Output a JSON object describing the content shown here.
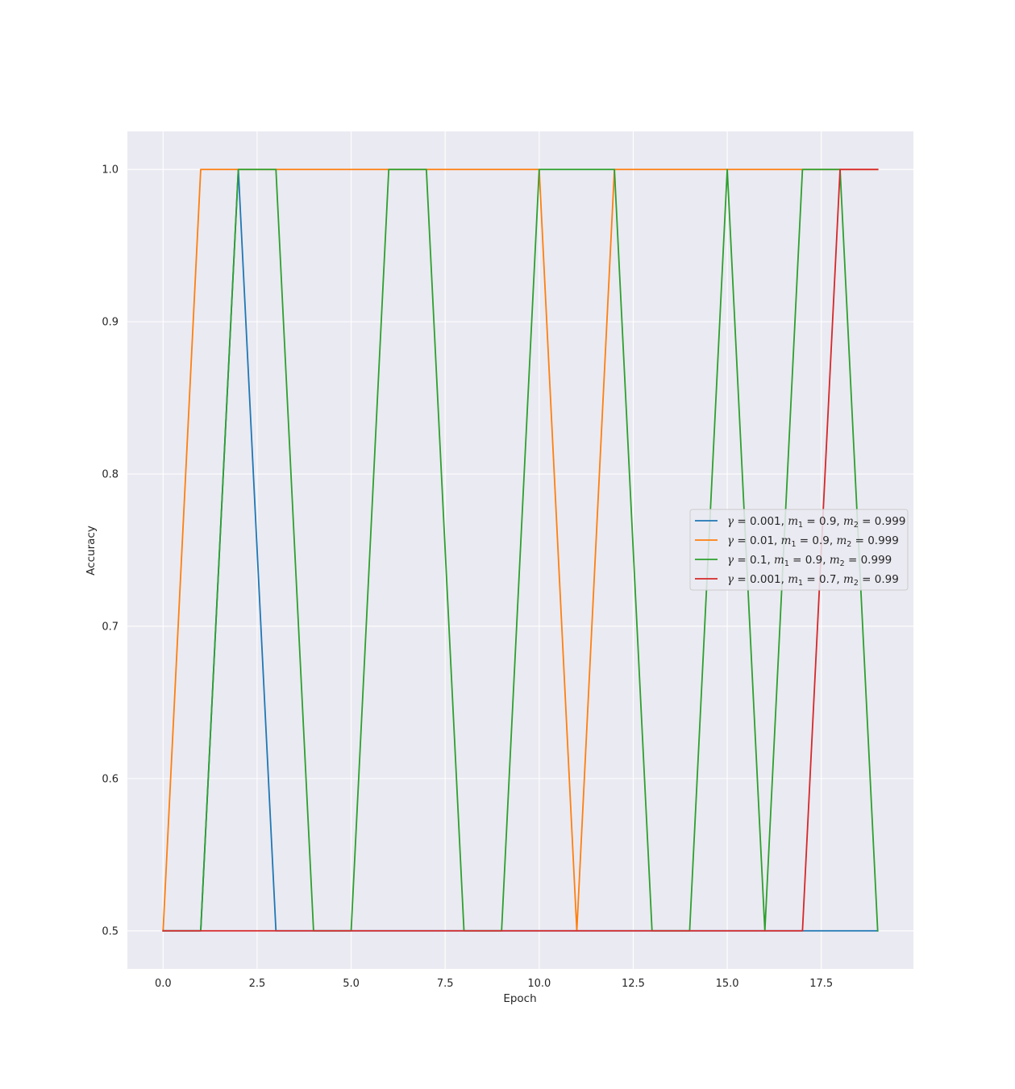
{
  "chart_data": {
    "type": "line",
    "xlabel": "Epoch",
    "ylabel": "Accuracy",
    "xlim": [
      -0.95,
      19.95
    ],
    "ylim": [
      0.475,
      1.025
    ],
    "xticks": [
      "0.0",
      "2.5",
      "5.0",
      "7.5",
      "10.0",
      "12.5",
      "15.0",
      "17.5"
    ],
    "yticks": [
      "0.5",
      "0.6",
      "0.7",
      "0.8",
      "0.9",
      "1.0"
    ],
    "grid": true,
    "legend_position": "center-right",
    "x": [
      0,
      1,
      2,
      3,
      4,
      5,
      6,
      7,
      8,
      9,
      10,
      11,
      12,
      13,
      14,
      15,
      16,
      17,
      18,
      19
    ],
    "series": [
      {
        "name": "γ = 0.001, m1 = 0.9, m2 = 0.999",
        "legend": {
          "gamma": "0.001",
          "m1": "0.9",
          "m2": "0.999"
        },
        "color": "#1f77b4",
        "values": [
          0.5,
          0.5,
          1.0,
          0.5,
          0.5,
          0.5,
          0.5,
          0.5,
          0.5,
          0.5,
          0.5,
          0.5,
          0.5,
          0.5,
          0.5,
          0.5,
          0.5,
          0.5,
          0.5,
          0.5
        ]
      },
      {
        "name": "γ = 0.01, m1 = 0.9, m2 = 0.999",
        "legend": {
          "gamma": "0.01",
          "m1": "0.9",
          "m2": "0.999"
        },
        "color": "#ff7f0e",
        "values": [
          0.5,
          1.0,
          1.0,
          1.0,
          1.0,
          1.0,
          1.0,
          1.0,
          1.0,
          1.0,
          1.0,
          0.5,
          1.0,
          1.0,
          1.0,
          1.0,
          1.0,
          1.0,
          1.0,
          1.0
        ]
      },
      {
        "name": "γ = 0.1, m1 = 0.9, m2 = 0.999",
        "legend": {
          "gamma": "0.1",
          "m1": "0.9",
          "m2": "0.999"
        },
        "color": "#2ca02c",
        "values": [
          0.5,
          0.5,
          1.0,
          1.0,
          0.5,
          0.5,
          1.0,
          1.0,
          0.5,
          0.5,
          1.0,
          1.0,
          1.0,
          0.5,
          0.5,
          1.0,
          0.5,
          1.0,
          1.0,
          0.5
        ]
      },
      {
        "name": "γ = 0.001, m1 = 0.7, m2 = 0.99",
        "legend": {
          "gamma": "0.001",
          "m1": "0.7",
          "m2": "0.99"
        },
        "color": "#d62728",
        "values": [
          0.5,
          0.5,
          0.5,
          0.5,
          0.5,
          0.5,
          0.5,
          0.5,
          0.5,
          0.5,
          0.5,
          0.5,
          0.5,
          0.5,
          0.5,
          0.5,
          0.5,
          0.5,
          1.0,
          1.0
        ]
      }
    ]
  },
  "colors": {
    "plot_background": "#eaeaf2",
    "grid": "#ffffff"
  }
}
